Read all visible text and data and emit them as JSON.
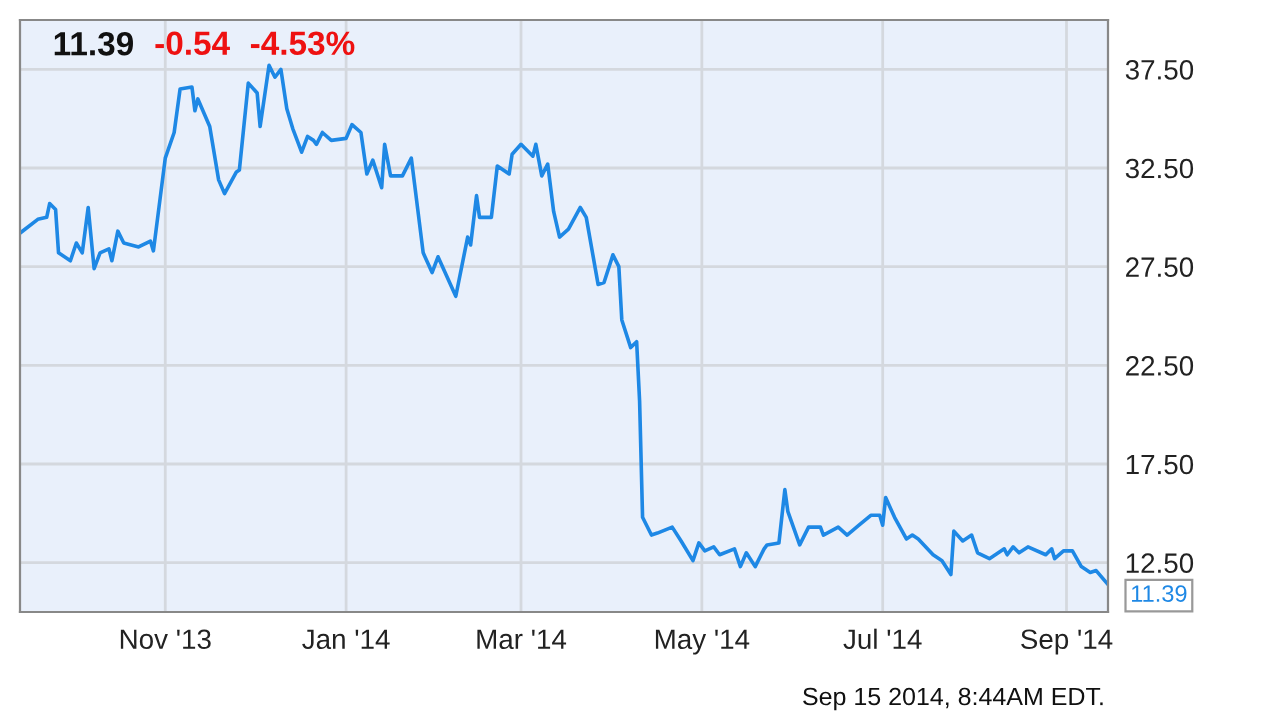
{
  "chart_data": {
    "type": "line",
    "title": "11.39",
    "annotations": [
      "-0.54",
      "-4.53%",
      "Sep 15 2014, 8:44AM EDT.",
      {
        "text": "11.39",
        "x": "2014-09-15",
        "y": 11.39
      }
    ],
    "x": [
      "2013-09-13",
      "2013-09-19",
      "2013-09-22",
      "2013-09-23",
      "2013-09-25",
      "2013-09-26",
      "2013-09-30",
      "2013-10-02",
      "2013-10-04",
      "2013-10-06",
      "2013-10-08",
      "2013-10-10",
      "2013-10-13",
      "2013-10-14",
      "2013-10-16",
      "2013-10-18",
      "2013-10-23",
      "2013-10-27",
      "2013-10-28",
      "2013-11-01",
      "2013-11-04",
      "2013-11-06",
      "2013-11-10",
      "2013-11-11",
      "2013-11-12",
      "2013-11-16",
      "2013-11-19",
      "2013-11-21",
      "2013-11-25",
      "2013-11-26",
      "2013-11-29",
      "2013-12-02",
      "2013-12-03",
      "2013-12-06",
      "2013-12-08",
      "2013-12-10",
      "2013-12-12",
      "2013-12-14",
      "2013-12-17",
      "2013-12-19",
      "2013-12-21",
      "2013-12-22",
      "2013-12-24",
      "2013-12-27",
      "2014-01-01",
      "2014-01-03",
      "2014-01-06",
      "2014-01-08",
      "2014-01-10",
      "2014-01-13",
      "2014-01-14",
      "2014-01-16",
      "2014-01-20",
      "2014-01-23",
      "2014-01-27",
      "2014-01-30",
      "2014-02-01",
      "2014-02-07",
      "2014-02-11",
      "2014-02-12",
      "2014-02-14",
      "2014-02-15",
      "2014-02-19",
      "2014-02-21",
      "2014-02-25",
      "2014-02-26",
      "2014-03-01",
      "2014-03-05",
      "2014-03-06",
      "2014-03-08",
      "2014-03-10",
      "2014-03-12",
      "2014-03-14",
      "2014-03-17",
      "2014-03-21",
      "2014-03-23",
      "2014-03-27",
      "2014-03-29",
      "2014-04-01",
      "2014-04-03",
      "2014-04-04",
      "2014-04-07",
      "2014-04-09",
      "2014-04-10",
      "2014-04-11",
      "2014-04-14",
      "2014-04-16",
      "2014-04-21",
      "2014-04-24",
      "2014-04-28",
      "2014-04-30",
      "2014-05-02",
      "2014-05-05",
      "2014-05-07",
      "2014-05-12",
      "2014-05-14",
      "2014-05-16",
      "2014-05-19",
      "2014-05-22",
      "2014-05-23",
      "2014-05-27",
      "2014-05-29",
      "2014-05-30",
      "2014-06-03",
      "2014-06-06",
      "2014-06-10",
      "2014-06-11",
      "2014-06-16",
      "2014-06-19",
      "2014-06-23",
      "2014-06-27",
      "2014-06-30",
      "2014-07-01",
      "2014-07-02",
      "2014-07-05",
      "2014-07-09",
      "2014-07-11",
      "2014-07-13",
      "2014-07-18",
      "2014-07-21",
      "2014-07-24",
      "2014-07-25",
      "2014-07-28",
      "2014-07-31",
      "2014-08-02",
      "2014-08-06",
      "2014-08-11",
      "2014-08-12",
      "2014-08-14",
      "2014-08-16",
      "2014-08-19",
      "2014-08-25",
      "2014-08-27",
      "2014-08-28",
      "2014-08-31",
      "2014-09-03",
      "2014-09-06",
      "2014-09-09",
      "2014-09-11",
      "2014-09-15"
    ],
    "series": [
      {
        "color": "#1e88e5",
        "values": [
          29.2,
          29.9,
          30.0,
          30.7,
          30.4,
          28.2,
          27.8,
          28.7,
          28.2,
          30.5,
          27.4,
          28.2,
          28.4,
          27.8,
          29.3,
          28.7,
          28.5,
          28.8,
          28.3,
          33.0,
          34.3,
          36.5,
          36.6,
          35.4,
          36.0,
          34.6,
          31.9,
          31.2,
          32.3,
          32.4,
          36.8,
          36.3,
          34.6,
          37.7,
          37.1,
          37.5,
          35.5,
          34.5,
          33.3,
          34.1,
          33.9,
          33.7,
          34.3,
          33.9,
          34.0,
          34.7,
          34.3,
          32.2,
          32.9,
          31.5,
          33.7,
          32.1,
          32.1,
          33.0,
          28.2,
          27.2,
          28.0,
          26.0,
          29.0,
          28.6,
          31.1,
          30.0,
          30.0,
          32.6,
          32.2,
          33.2,
          33.7,
          33.1,
          33.7,
          32.1,
          32.7,
          30.3,
          29.0,
          29.4,
          30.5,
          30.0,
          26.6,
          26.7,
          28.1,
          27.5,
          24.8,
          23.4,
          23.7,
          20.7,
          14.8,
          13.9,
          14.0,
          14.3,
          13.6,
          12.6,
          13.5,
          13.1,
          13.3,
          12.9,
          13.2,
          12.3,
          13.0,
          12.3,
          13.2,
          13.4,
          13.5,
          16.2,
          15.1,
          13.4,
          14.3,
          14.3,
          13.9,
          14.3,
          13.9,
          14.4,
          14.9,
          14.9,
          14.4,
          15.8,
          14.8,
          13.7,
          13.9,
          13.7,
          12.9,
          12.6,
          11.9,
          14.1,
          13.6,
          13.9,
          13.0,
          12.7,
          13.2,
          12.9,
          13.3,
          13.0,
          13.3,
          12.9,
          13.2,
          12.7,
          13.1,
          13.1,
          12.3,
          12.0,
          12.1,
          11.39
        ]
      }
    ],
    "xlim": [
      "2013-09-13",
      "2014-09-15"
    ],
    "xticks": [
      {
        "value": "2013-11-01",
        "label": "Nov '13"
      },
      {
        "value": "2014-01-01",
        "label": "Jan '14"
      },
      {
        "value": "2014-03-01",
        "label": "Mar '14"
      },
      {
        "value": "2014-05-01",
        "label": "May '14"
      },
      {
        "value": "2014-07-01",
        "label": "Jul '14"
      },
      {
        "value": "2014-09-01",
        "label": "Sep '14"
      }
    ],
    "ylim": [
      10,
      40
    ],
    "yticks": [
      {
        "value": 12.5,
        "label": "12.50"
      },
      {
        "value": 17.5,
        "label": "17.50"
      },
      {
        "value": 22.5,
        "label": "22.50"
      },
      {
        "value": 27.5,
        "label": "27.50"
      },
      {
        "value": 32.5,
        "label": "32.50"
      },
      {
        "value": 37.5,
        "label": "37.50"
      }
    ],
    "grid": true,
    "legend": false,
    "marker": "none",
    "line_style": "solid"
  }
}
